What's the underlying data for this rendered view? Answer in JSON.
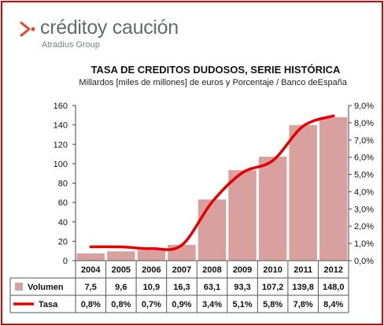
{
  "brand": {
    "name": "créditoy caución",
    "subtitle": "Atradius Group",
    "mark_color": "#e8432c"
  },
  "chart_data": {
    "type": "bar",
    "title": "TASA DE CREDITOS DUDOSOS, SERIE HISTÓRICA",
    "subtitle": "Millardos [miles de millones] de euros y Porcentaje / Banco deEspaña",
    "categories": [
      "2004",
      "2005",
      "2006",
      "2007",
      "2008",
      "2009",
      "2010",
      "2011",
      "2012"
    ],
    "series": [
      {
        "name": "Volumen",
        "kind": "bar",
        "axis": "left",
        "color": "#d9a0a0",
        "values": [
          7.5,
          9.6,
          10.9,
          16.3,
          63.1,
          93.3,
          107.2,
          139.8,
          148.0
        ],
        "labels": [
          "7,5",
          "9,6",
          "10,9",
          "16,3",
          "63,1",
          "93,3",
          "107,2",
          "139,8",
          "148,0"
        ]
      },
      {
        "name": "Tasa",
        "kind": "line",
        "axis": "right",
        "color": "#e60000",
        "values": [
          0.8,
          0.8,
          0.7,
          0.9,
          3.4,
          5.1,
          5.8,
          7.8,
          8.4
        ],
        "labels": [
          "0,8%",
          "0,8%",
          "0,7%",
          "0,9%",
          "3,4%",
          "5,1%",
          "5,8%",
          "7,8%",
          "8,4%"
        ]
      }
    ],
    "y_left": {
      "min": 0,
      "max": 160,
      "ticks": [
        "0",
        "20",
        "40",
        "60",
        "80",
        "100",
        "120",
        "140",
        "160"
      ]
    },
    "y_right": {
      "min": 0,
      "max": 9,
      "ticks": [
        "0,0%",
        "1,0%",
        "2,0%",
        "3,0%",
        "4,0%",
        "5,0%",
        "6,0%",
        "7,0%",
        "8,0%",
        "9,0%"
      ]
    },
    "grid": false,
    "legend": "data-table"
  }
}
